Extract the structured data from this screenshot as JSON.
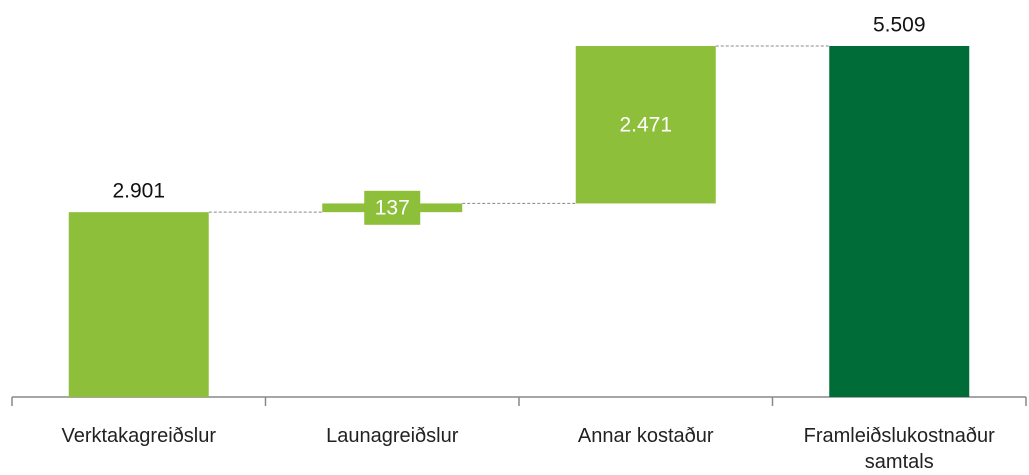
{
  "chart_data": {
    "type": "waterfall",
    "categories": [
      "Verktakagreiðslur",
      "Launagreiðslur",
      "Annar kostaður",
      "Framleiðslukostnaður samtals"
    ],
    "values": [
      2901,
      137,
      2471,
      5509
    ],
    "value_labels": [
      "2.901",
      "137",
      "2.471",
      "5.509"
    ],
    "measures": [
      "relative",
      "relative",
      "relative",
      "total"
    ],
    "color": "#8dbf3b",
    "total_color": "#006c37"
  }
}
